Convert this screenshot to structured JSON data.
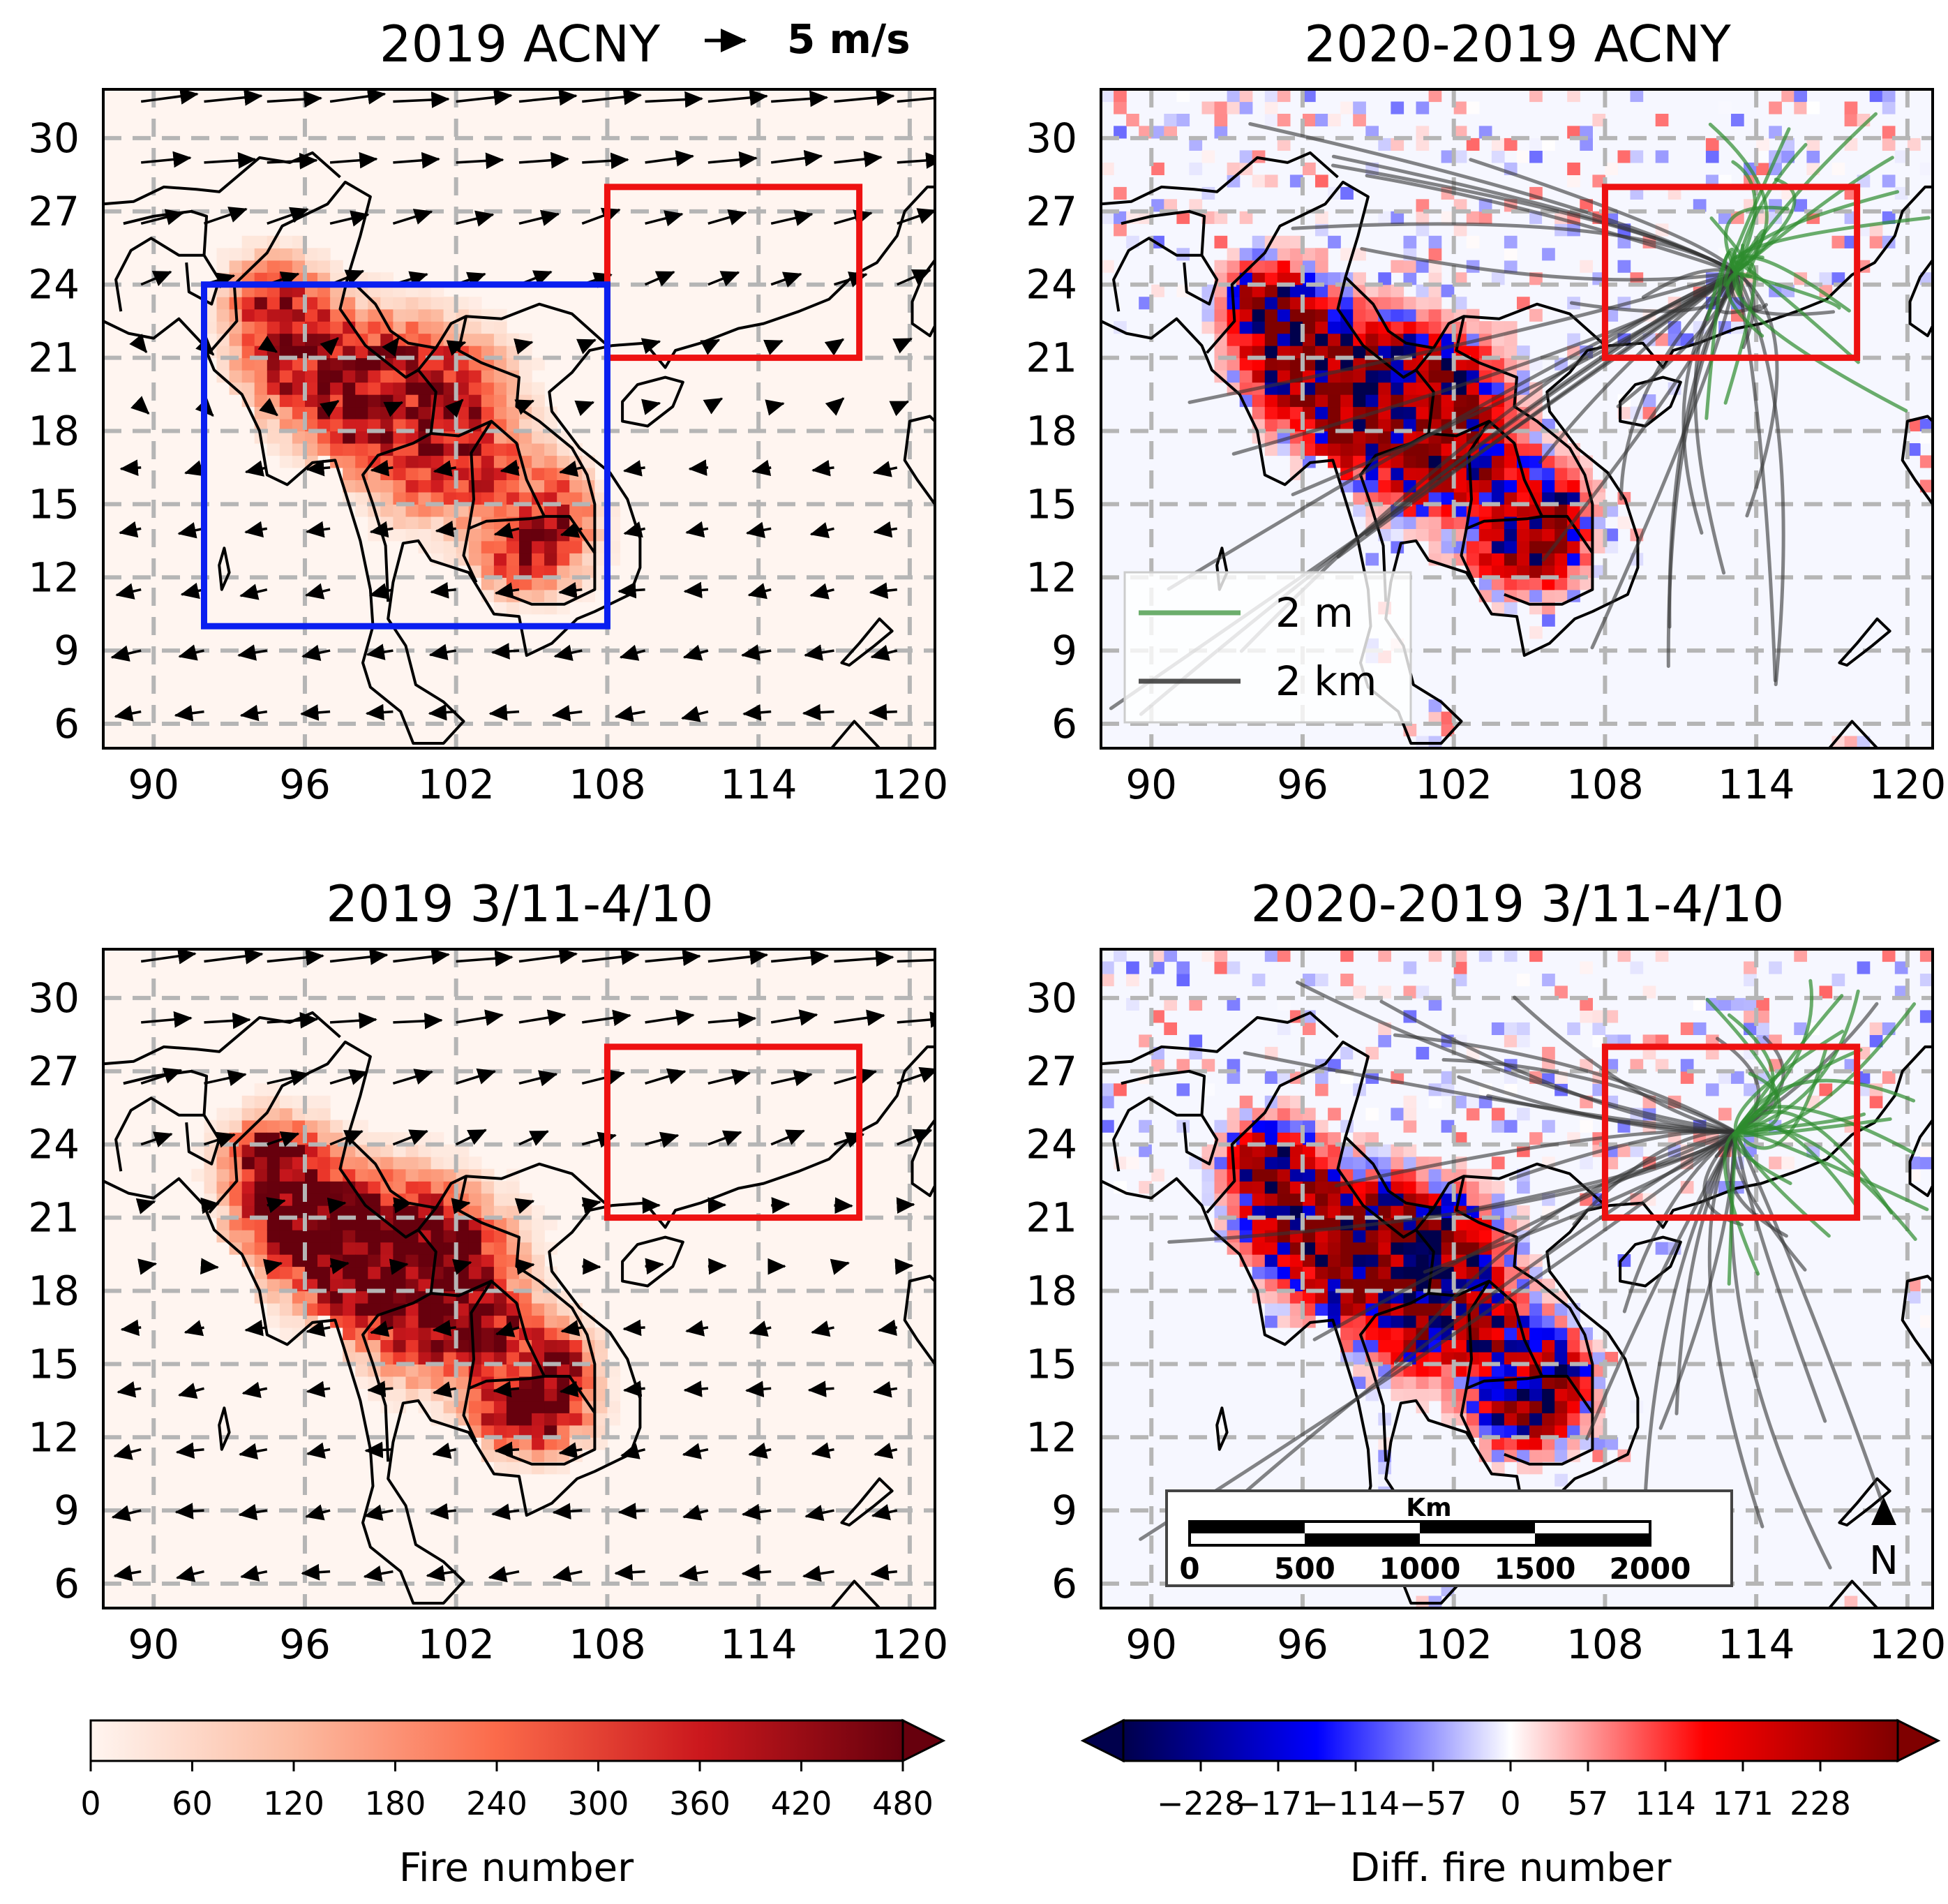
{
  "colors": {
    "fire_scale": [
      "#fff5f0",
      "#fee0d2",
      "#fcbba1",
      "#fc9272",
      "#fb6a4a",
      "#ef3b2c",
      "#cb181d",
      "#a50f15",
      "#67000d"
    ],
    "diff_scale": [
      "#00004c",
      "#0000ff",
      "#ffffff",
      "#ff0000",
      "#7f0000"
    ],
    "source_box": "#0a1ff0",
    "target_box": "#ee1111",
    "coast": "#000000",
    "grid": "#b5b5b5",
    "traj_2m": "#2e8b2e",
    "traj_2km": "#333333"
  },
  "panels": [
    {
      "title": "2019 ACNY",
      "kind": "fire",
      "wind_period": "cny"
    },
    {
      "title": "2020-2019 ACNY",
      "kind": "diff",
      "trajectories": true
    },
    {
      "title": "2019 3/11-4/10",
      "kind": "fire",
      "wind_period": "spring"
    },
    {
      "title": "2020-2019 3/11-4/10",
      "kind": "diff",
      "trajectories": true
    }
  ],
  "wind_reference": {
    "label": "5 m/s"
  },
  "axes": {
    "lon_range": [
      88,
      121
    ],
    "lat_range": [
      5,
      32
    ],
    "lon_ticks": [
      "90",
      "96",
      "102",
      "108",
      "114",
      "120"
    ],
    "lat_ticks": [
      "30",
      "27",
      "24",
      "21",
      "18",
      "15",
      "12",
      "9",
      "6"
    ]
  },
  "boxes": {
    "source_region": {
      "lon": [
        92,
        108
      ],
      "lat": [
        10,
        24
      ]
    },
    "target_region": {
      "lon": [
        108,
        118
      ],
      "lat": [
        21,
        28
      ]
    }
  },
  "legend": {
    "line_2m": "2 m",
    "line_2km": "2 km"
  },
  "scalebar": {
    "unit": "Km",
    "labels": [
      "0",
      "500",
      "1000",
      "1500",
      "2000"
    ]
  },
  "north_arrow": {
    "label": "N"
  },
  "colorbars": {
    "fire": {
      "label": "Fire number",
      "ticks": [
        "0",
        "60",
        "120",
        "180",
        "240",
        "300",
        "360",
        "420",
        "480"
      ],
      "range": [
        0,
        480
      ]
    },
    "diff": {
      "label": "Diff. fire number",
      "ticks": [
        "−228",
        "−171",
        "−114",
        "−57",
        "0",
        "57",
        "114",
        "171",
        "228"
      ],
      "range": [
        -285,
        285
      ]
    }
  }
}
